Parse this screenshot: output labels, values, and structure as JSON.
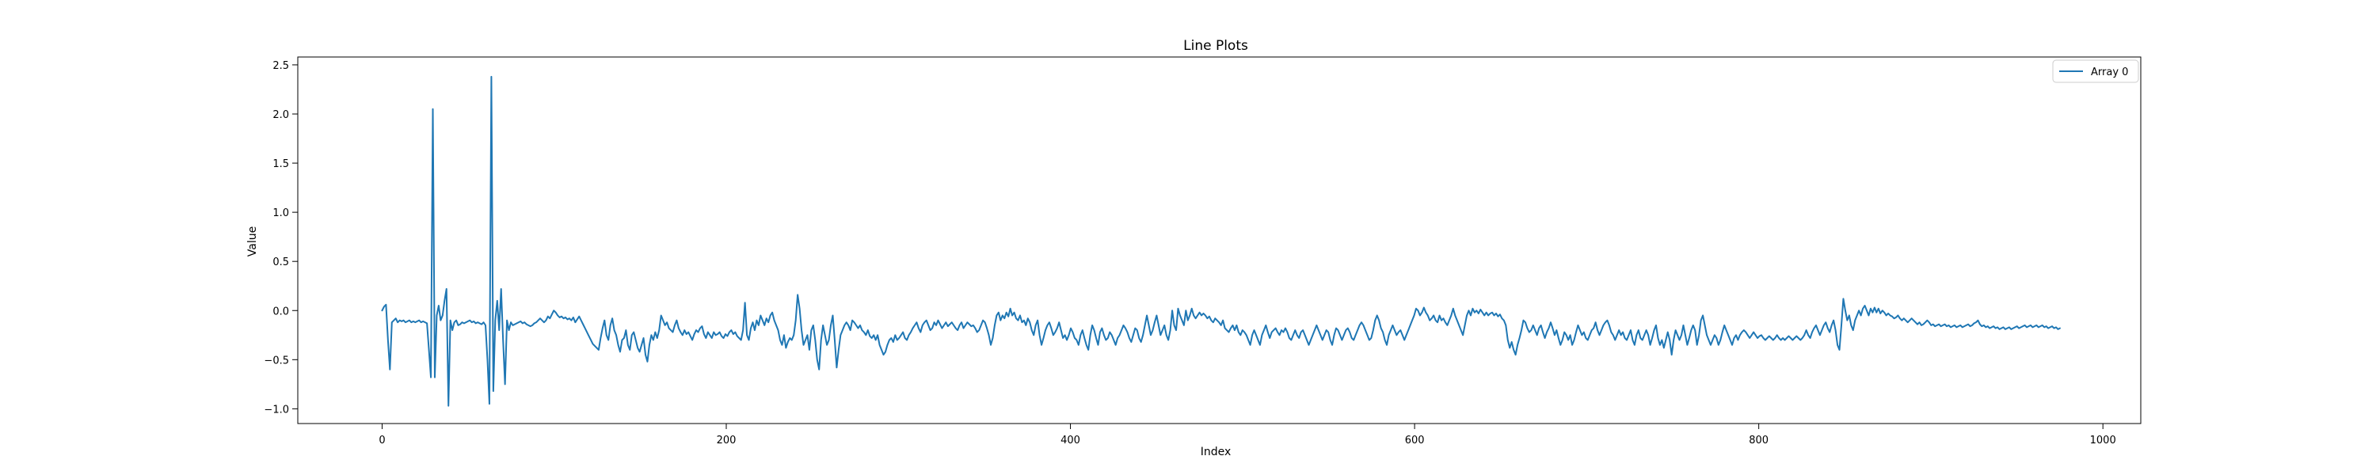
{
  "chart_data": {
    "type": "line",
    "title": "Line Plots",
    "xlabel": "Index",
    "ylabel": "Value",
    "xlim": [
      -49,
      1022
    ],
    "ylim": [
      -1.15,
      2.58
    ],
    "x_ticks": [
      0,
      200,
      400,
      600,
      800,
      1000
    ],
    "x_tick_labels": [
      "0",
      "200",
      "400",
      "600",
      "800",
      "1000"
    ],
    "y_ticks": [
      -1.0,
      -0.5,
      0.0,
      0.5,
      1.0,
      1.5,
      2.0,
      2.5
    ],
    "y_tick_labels": [
      "−1.0",
      "−0.5",
      "0.0",
      "0.5",
      "1.0",
      "1.5",
      "2.0",
      "2.5"
    ],
    "grid": false,
    "legend_position": "top-right",
    "series": [
      {
        "name": "Array 0",
        "color": "#1f77b4",
        "x_start": 0,
        "x_step": 1,
        "y": [
          0.0,
          0.04,
          0.06,
          -0.3,
          -0.6,
          -0.12,
          -0.1,
          -0.08,
          -0.12,
          -0.1,
          -0.11,
          -0.1,
          -0.12,
          -0.11,
          -0.1,
          -0.12,
          -0.11,
          -0.12,
          -0.11,
          -0.1,
          -0.12,
          -0.11,
          -0.12,
          -0.13,
          -0.4,
          -0.68,
          2.05,
          -0.68,
          -0.05,
          0.05,
          -0.1,
          -0.05,
          0.1,
          0.22,
          -0.97,
          -0.1,
          -0.2,
          -0.12,
          -0.1,
          -0.15,
          -0.14,
          -0.12,
          -0.13,
          -0.12,
          -0.11,
          -0.1,
          -0.12,
          -0.11,
          -0.13,
          -0.12,
          -0.13,
          -0.14,
          -0.12,
          -0.15,
          -0.5,
          -0.95,
          2.38,
          -0.82,
          -0.1,
          0.1,
          -0.2,
          0.22,
          -0.3,
          -0.75,
          -0.1,
          -0.2,
          -0.12,
          -0.15,
          -0.14,
          -0.13,
          -0.12,
          -0.11,
          -0.13,
          -0.12,
          -0.14,
          -0.15,
          -0.16,
          -0.15,
          -0.13,
          -0.12,
          -0.1,
          -0.08,
          -0.1,
          -0.12,
          -0.1,
          -0.06,
          -0.08,
          -0.04,
          0.0,
          -0.02,
          -0.05,
          -0.07,
          -0.06,
          -0.08,
          -0.07,
          -0.09,
          -0.08,
          -0.1,
          -0.07,
          -0.12,
          -0.09,
          -0.06,
          -0.1,
          -0.14,
          -0.18,
          -0.22,
          -0.26,
          -0.3,
          -0.34,
          -0.36,
          -0.38,
          -0.4,
          -0.28,
          -0.18,
          -0.1,
          -0.25,
          -0.3,
          -0.15,
          -0.08,
          -0.2,
          -0.25,
          -0.35,
          -0.42,
          -0.3,
          -0.28,
          -0.2,
          -0.35,
          -0.4,
          -0.25,
          -0.22,
          -0.3,
          -0.38,
          -0.42,
          -0.35,
          -0.28,
          -0.45,
          -0.52,
          -0.35,
          -0.25,
          -0.3,
          -0.22,
          -0.28,
          -0.2,
          -0.05,
          -0.1,
          -0.15,
          -0.12,
          -0.18,
          -0.2,
          -0.22,
          -0.15,
          -0.1,
          -0.18,
          -0.22,
          -0.25,
          -0.2,
          -0.24,
          -0.22,
          -0.26,
          -0.3,
          -0.24,
          -0.2,
          -0.22,
          -0.18,
          -0.16,
          -0.24,
          -0.28,
          -0.22,
          -0.25,
          -0.28,
          -0.22,
          -0.25,
          -0.24,
          -0.22,
          -0.26,
          -0.28,
          -0.24,
          -0.26,
          -0.22,
          -0.2,
          -0.24,
          -0.22,
          -0.26,
          -0.28,
          -0.3,
          -0.2,
          0.08,
          -0.25,
          -0.3,
          -0.18,
          -0.12,
          -0.2,
          -0.1,
          -0.15,
          -0.05,
          -0.1,
          -0.15,
          -0.08,
          -0.12,
          -0.05,
          -0.02,
          -0.1,
          -0.15,
          -0.2,
          -0.3,
          -0.35,
          -0.25,
          -0.38,
          -0.32,
          -0.28,
          -0.3,
          -0.25,
          -0.1,
          0.16,
          0.02,
          -0.2,
          -0.35,
          -0.3,
          -0.25,
          -0.4,
          -0.2,
          -0.15,
          -0.3,
          -0.5,
          -0.6,
          -0.3,
          -0.15,
          -0.25,
          -0.35,
          -0.3,
          -0.15,
          -0.05,
          -0.3,
          -0.58,
          -0.4,
          -0.25,
          -0.2,
          -0.15,
          -0.12,
          -0.15,
          -0.2,
          -0.1,
          -0.12,
          -0.15,
          -0.18,
          -0.15,
          -0.2,
          -0.22,
          -0.25,
          -0.2,
          -0.26,
          -0.28,
          -0.25,
          -0.3,
          -0.25,
          -0.35,
          -0.4,
          -0.45,
          -0.42,
          -0.35,
          -0.3,
          -0.28,
          -0.32,
          -0.25,
          -0.3,
          -0.28,
          -0.25,
          -0.22,
          -0.28,
          -0.3,
          -0.25,
          -0.22,
          -0.18,
          -0.15,
          -0.12,
          -0.18,
          -0.22,
          -0.15,
          -0.12,
          -0.1,
          -0.15,
          -0.2,
          -0.18,
          -0.12,
          -0.15,
          -0.1,
          -0.14,
          -0.18,
          -0.15,
          -0.12,
          -0.16,
          -0.14,
          -0.12,
          -0.15,
          -0.18,
          -0.2,
          -0.15,
          -0.12,
          -0.18,
          -0.15,
          -0.12,
          -0.14,
          -0.16,
          -0.15,
          -0.18,
          -0.22,
          -0.2,
          -0.15,
          -0.1,
          -0.12,
          -0.18,
          -0.25,
          -0.35,
          -0.28,
          -0.15,
          -0.05,
          -0.02,
          -0.1,
          -0.05,
          -0.08,
          -0.02,
          -0.06,
          0.02,
          -0.05,
          -0.02,
          -0.08,
          -0.1,
          -0.05,
          -0.12,
          -0.1,
          -0.15,
          -0.08,
          -0.12,
          -0.2,
          -0.25,
          -0.15,
          -0.1,
          -0.25,
          -0.35,
          -0.28,
          -0.2,
          -0.15,
          -0.12,
          -0.18,
          -0.25,
          -0.22,
          -0.18,
          -0.12,
          -0.2,
          -0.28,
          -0.25,
          -0.3,
          -0.25,
          -0.18,
          -0.22,
          -0.28,
          -0.3,
          -0.35,
          -0.25,
          -0.2,
          -0.28,
          -0.35,
          -0.4,
          -0.25,
          -0.15,
          -0.2,
          -0.28,
          -0.35,
          -0.22,
          -0.18,
          -0.25,
          -0.3,
          -0.28,
          -0.22,
          -0.25,
          -0.3,
          -0.35,
          -0.28,
          -0.25,
          -0.2,
          -0.15,
          -0.18,
          -0.22,
          -0.28,
          -0.32,
          -0.25,
          -0.18,
          -0.2,
          -0.28,
          -0.32,
          -0.25,
          -0.15,
          -0.05,
          -0.15,
          -0.25,
          -0.2,
          -0.12,
          -0.05,
          -0.15,
          -0.25,
          -0.2,
          -0.15,
          -0.25,
          -0.3,
          -0.2,
          0.0,
          -0.15,
          -0.2,
          0.02,
          -0.05,
          -0.1,
          -0.15,
          0.0,
          -0.1,
          -0.05,
          0.02,
          -0.05,
          -0.08,
          -0.05,
          -0.02,
          -0.05,
          -0.03,
          -0.05,
          -0.08,
          -0.06,
          -0.1,
          -0.12,
          -0.08,
          -0.1,
          -0.12,
          -0.15,
          -0.1,
          -0.18,
          -0.2,
          -0.22,
          -0.18,
          -0.15,
          -0.2,
          -0.15,
          -0.22,
          -0.25,
          -0.2,
          -0.22,
          -0.25,
          -0.3,
          -0.35,
          -0.25,
          -0.2,
          -0.25,
          -0.3,
          -0.35,
          -0.25,
          -0.2,
          -0.15,
          -0.22,
          -0.28,
          -0.22,
          -0.2,
          -0.18,
          -0.22,
          -0.25,
          -0.2,
          -0.22,
          -0.18,
          -0.22,
          -0.28,
          -0.3,
          -0.25,
          -0.2,
          -0.25,
          -0.28,
          -0.22,
          -0.2,
          -0.25,
          -0.3,
          -0.35,
          -0.3,
          -0.25,
          -0.2,
          -0.15,
          -0.2,
          -0.25,
          -0.3,
          -0.25,
          -0.2,
          -0.22,
          -0.3,
          -0.35,
          -0.25,
          -0.18,
          -0.2,
          -0.25,
          -0.3,
          -0.25,
          -0.2,
          -0.18,
          -0.22,
          -0.28,
          -0.3,
          -0.25,
          -0.2,
          -0.15,
          -0.12,
          -0.15,
          -0.2,
          -0.25,
          -0.3,
          -0.28,
          -0.2,
          -0.1,
          -0.05,
          -0.1,
          -0.18,
          -0.22,
          -0.3,
          -0.35,
          -0.25,
          -0.2,
          -0.15,
          -0.2,
          -0.25,
          -0.22,
          -0.2,
          -0.25,
          -0.3,
          -0.25,
          -0.2,
          -0.15,
          -0.1,
          -0.05,
          0.02,
          0.0,
          -0.05,
          -0.02,
          0.03,
          -0.02,
          -0.05,
          -0.1,
          -0.08,
          -0.05,
          -0.1,
          -0.12,
          -0.05,
          -0.1,
          -0.08,
          -0.12,
          -0.15,
          -0.1,
          -0.05,
          0.02,
          -0.05,
          -0.1,
          -0.15,
          -0.2,
          -0.25,
          -0.15,
          -0.05,
          0.0,
          -0.05,
          0.02,
          -0.02,
          0.0,
          -0.03,
          0.01,
          -0.02,
          -0.05,
          -0.02,
          -0.05,
          -0.03,
          -0.02,
          -0.05,
          -0.03,
          -0.06,
          -0.04,
          -0.08,
          -0.1,
          -0.15,
          -0.3,
          -0.38,
          -0.32,
          -0.4,
          -0.45,
          -0.35,
          -0.28,
          -0.2,
          -0.1,
          -0.12,
          -0.18,
          -0.22,
          -0.2,
          -0.15,
          -0.2,
          -0.25,
          -0.18,
          -0.15,
          -0.22,
          -0.28,
          -0.22,
          -0.18,
          -0.12,
          -0.18,
          -0.25,
          -0.2,
          -0.28,
          -0.35,
          -0.3,
          -0.22,
          -0.25,
          -0.3,
          -0.25,
          -0.35,
          -0.3,
          -0.22,
          -0.15,
          -0.2,
          -0.25,
          -0.22,
          -0.28,
          -0.3,
          -0.25,
          -0.2,
          -0.18,
          -0.12,
          -0.2,
          -0.25,
          -0.2,
          -0.15,
          -0.12,
          -0.1,
          -0.15,
          -0.22,
          -0.25,
          -0.3,
          -0.25,
          -0.2,
          -0.25,
          -0.22,
          -0.28,
          -0.3,
          -0.25,
          -0.2,
          -0.3,
          -0.35,
          -0.25,
          -0.2,
          -0.28,
          -0.3,
          -0.25,
          -0.2,
          -0.25,
          -0.35,
          -0.28,
          -0.2,
          -0.15,
          -0.28,
          -0.35,
          -0.3,
          -0.38,
          -0.3,
          -0.22,
          -0.3,
          -0.45,
          -0.3,
          -0.2,
          -0.25,
          -0.3,
          -0.25,
          -0.15,
          -0.25,
          -0.35,
          -0.28,
          -0.2,
          -0.15,
          -0.2,
          -0.35,
          -0.25,
          -0.1,
          -0.05,
          -0.15,
          -0.25,
          -0.3,
          -0.35,
          -0.3,
          -0.25,
          -0.28,
          -0.35,
          -0.3,
          -0.22,
          -0.15,
          -0.2,
          -0.25,
          -0.3,
          -0.35,
          -0.28,
          -0.25,
          -0.3,
          -0.25,
          -0.22,
          -0.2,
          -0.22,
          -0.25,
          -0.28,
          -0.25,
          -0.22,
          -0.25,
          -0.28,
          -0.26,
          -0.25,
          -0.28,
          -0.3,
          -0.28,
          -0.26,
          -0.28,
          -0.3,
          -0.28,
          -0.25,
          -0.28,
          -0.3,
          -0.28,
          -0.3,
          -0.28,
          -0.26,
          -0.28,
          -0.3,
          -0.28,
          -0.26,
          -0.28,
          -0.3,
          -0.28,
          -0.25,
          -0.2,
          -0.25,
          -0.28,
          -0.22,
          -0.18,
          -0.15,
          -0.2,
          -0.25,
          -0.2,
          -0.15,
          -0.12,
          -0.18,
          -0.22,
          -0.15,
          -0.1,
          -0.2,
          -0.35,
          -0.4,
          -0.15,
          0.12,
          0.0,
          -0.1,
          -0.05,
          -0.15,
          -0.2,
          -0.1,
          -0.05,
          0.0,
          -0.05,
          0.02,
          0.05,
          0.0,
          -0.05,
          0.02,
          -0.02,
          0.03,
          -0.02,
          0.02,
          -0.03,
          0.0,
          -0.02,
          -0.05,
          -0.03,
          -0.05,
          -0.06,
          -0.08,
          -0.07,
          -0.05,
          -0.08,
          -0.1,
          -0.08,
          -0.1,
          -0.12,
          -0.1,
          -0.08,
          -0.1,
          -0.12,
          -0.14,
          -0.12,
          -0.15,
          -0.14,
          -0.12,
          -0.1,
          -0.12,
          -0.15,
          -0.14,
          -0.16,
          -0.15,
          -0.14,
          -0.16,
          -0.15,
          -0.14,
          -0.16,
          -0.15,
          -0.17,
          -0.16,
          -0.15,
          -0.17,
          -0.16,
          -0.15,
          -0.17,
          -0.16,
          -0.15,
          -0.14,
          -0.16,
          -0.15,
          -0.13,
          -0.12,
          -0.1,
          -0.14,
          -0.16,
          -0.15,
          -0.17,
          -0.16,
          -0.18,
          -0.17,
          -0.16,
          -0.18,
          -0.17,
          -0.19,
          -0.18,
          -0.17,
          -0.19,
          -0.18,
          -0.17,
          -0.19,
          -0.18,
          -0.17,
          -0.16,
          -0.18,
          -0.17,
          -0.16,
          -0.15,
          -0.17,
          -0.16,
          -0.15,
          -0.17,
          -0.16,
          -0.15,
          -0.17,
          -0.16,
          -0.15,
          -0.17,
          -0.16,
          -0.18,
          -0.17,
          -0.16,
          -0.18,
          -0.17,
          -0.19,
          -0.18
        ]
      }
    ]
  }
}
